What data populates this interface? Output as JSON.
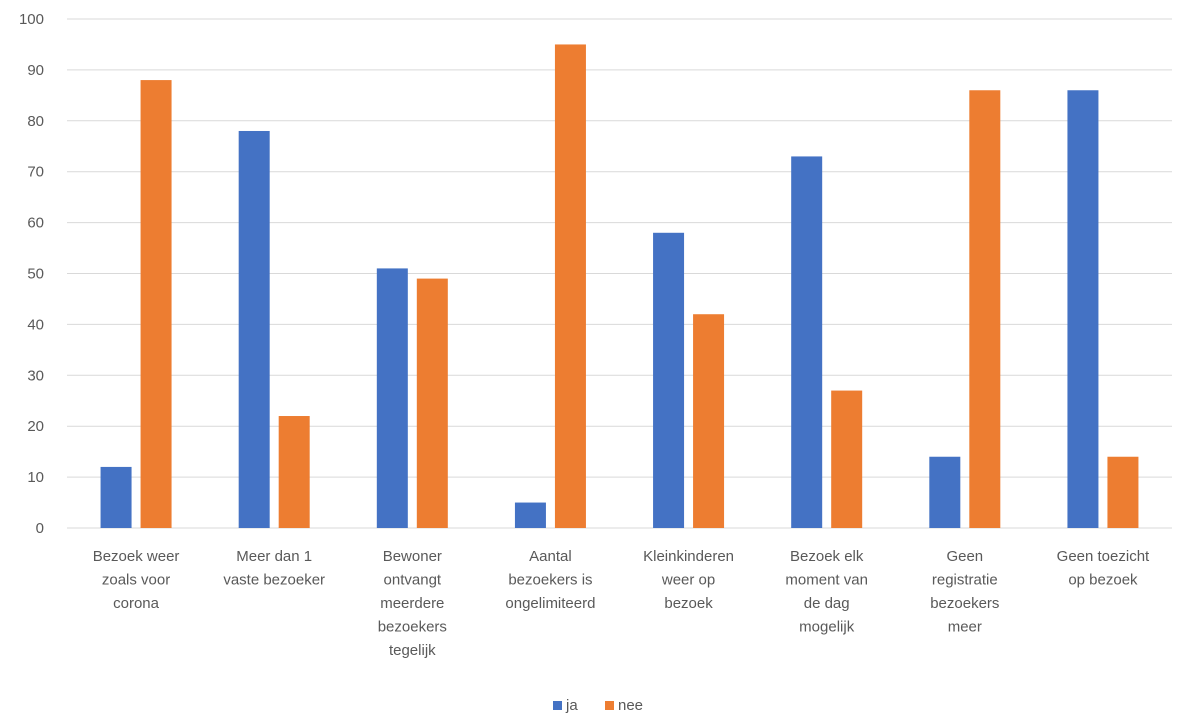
{
  "chart_data": {
    "type": "bar",
    "categories": [
      [
        "Bezoek weer",
        "zoals voor",
        "corona"
      ],
      [
        "Meer dan 1",
        "vaste bezoeker"
      ],
      [
        "Bewoner",
        "ontvangt",
        "meerdere",
        "bezoekers",
        "tegelijk"
      ],
      [
        "Aantal",
        "bezoekers is",
        "ongelimiteerd"
      ],
      [
        "Kleinkinderen",
        "weer op",
        "bezoek"
      ],
      [
        "Bezoek elk",
        "moment van",
        "de dag",
        "mogelijk"
      ],
      [
        "Geen",
        "registratie",
        "bezoekers",
        "meer"
      ],
      [
        "Geen toezicht",
        "op bezoek"
      ]
    ],
    "series": [
      {
        "name": "ja",
        "color": "#4472c4",
        "values": [
          12,
          78,
          51,
          5,
          58,
          73,
          14,
          86
        ]
      },
      {
        "name": "nee",
        "color": "#ed7d31",
        "values": [
          88,
          22,
          49,
          95,
          42,
          27,
          86,
          14
        ]
      }
    ],
    "ylim": [
      0,
      100
    ],
    "yticks": [
      0,
      10,
      20,
      30,
      40,
      50,
      60,
      70,
      80,
      90,
      100
    ],
    "grid": true,
    "legend": "bottom-center"
  }
}
